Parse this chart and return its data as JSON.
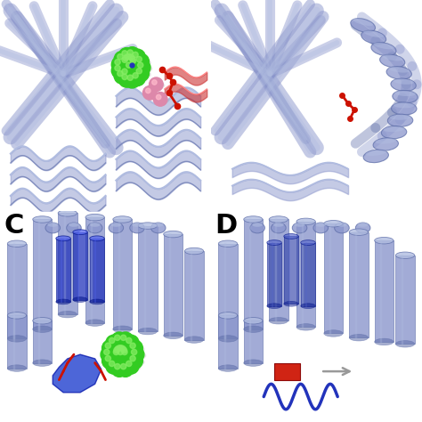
{
  "background_color": "#ffffff",
  "panel_labels": [
    "C",
    "D"
  ],
  "panel_label_fontsize": 22,
  "panel_label_fontweight": "bold",
  "figsize": [
    4.74,
    4.74
  ],
  "dpi": 100,
  "protein_color": "#8b96cc",
  "protein_dark": "#6070aa",
  "protein_light": "#b0bce0",
  "protein_bg": "#c8d0e8",
  "green_sphere": "#33cc22",
  "green_sphere_light": "#88ee66",
  "red_ligand": "#cc1100",
  "pink_sphere": "#dd88aa",
  "blue_helix": "#2233bb",
  "blue_patch": "#1133cc",
  "white": "#ffffff"
}
